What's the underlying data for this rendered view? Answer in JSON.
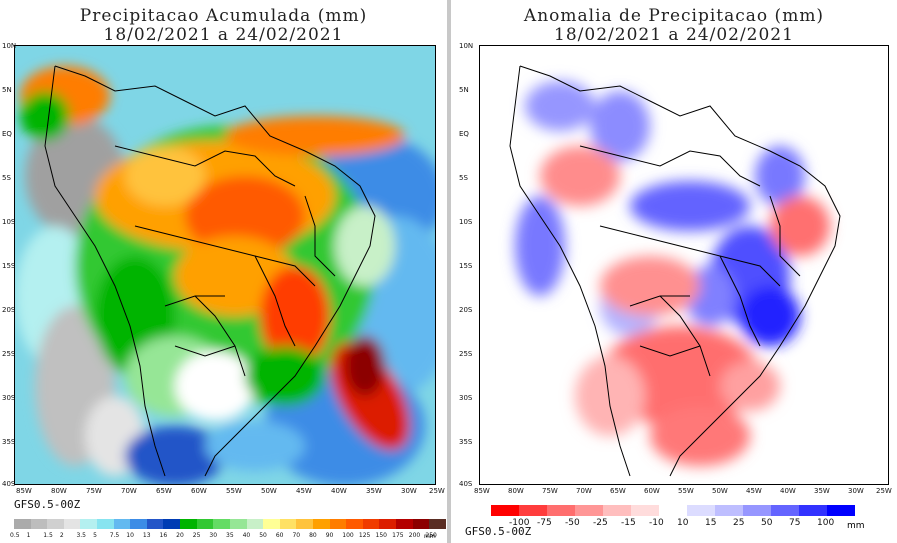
{
  "left": {
    "title": "Precipitacao Acumulada (mm)",
    "dates": "18/02/2021 a 24/02/2021",
    "model": "GFS0.5-00Z",
    "units": "mm",
    "scale_labels": [
      "0.5",
      "1",
      "1.5",
      "2",
      "3.5",
      "5",
      "7.5",
      "10",
      "13",
      "16",
      "20",
      "25",
      "30",
      "35",
      "40",
      "50",
      "60",
      "70",
      "80",
      "90",
      "100",
      "125",
      "150",
      "175",
      "200",
      "250"
    ],
    "scale_colors": [
      "#ababab",
      "#bdbdbd",
      "#d0d0d0",
      "#e4e4e4",
      "#b4f0f0",
      "#87e4f0",
      "#63b9f0",
      "#3c8ce6",
      "#2355c8",
      "#003cb4",
      "#00b400",
      "#32c832",
      "#64dc64",
      "#96e696",
      "#c8f0c8",
      "#ffff96",
      "#ffe164",
      "#ffc33c",
      "#ffa000",
      "#ff7d00",
      "#ff5a00",
      "#f03c00",
      "#dc1e00",
      "#b40000",
      "#8c0000",
      "#5a2d23"
    ]
  },
  "right": {
    "title": "Anomalia de Precipitacao (mm)",
    "dates": "18/02/2021 a 24/02/2021",
    "model": "GFS0.5-00Z",
    "units": "mm",
    "scale_labels": [
      "-100",
      "-75",
      "-50",
      "-25",
      "-15",
      "-10",
      "10",
      "15",
      "25",
      "50",
      "75",
      "100"
    ],
    "scale_colors": [
      "#ff0000",
      "#ff3c3c",
      "#ff6e6e",
      "#ff9696",
      "#ffbebe",
      "#ffdcdc",
      "#ffffff",
      "#dcdcff",
      "#bebeff",
      "#9696ff",
      "#6464ff",
      "#3232ff",
      "#0000ff"
    ]
  },
  "lat_labels": [
    "10N",
    "5N",
    "EQ",
    "5S",
    "10S",
    "15S",
    "20S",
    "25S",
    "30S",
    "35S",
    "40S"
  ],
  "lon_labels": [
    "85W",
    "80W",
    "75W",
    "70W",
    "65W",
    "60W",
    "55W",
    "50W",
    "45W",
    "40W",
    "35W",
    "30W",
    "25W"
  ]
}
